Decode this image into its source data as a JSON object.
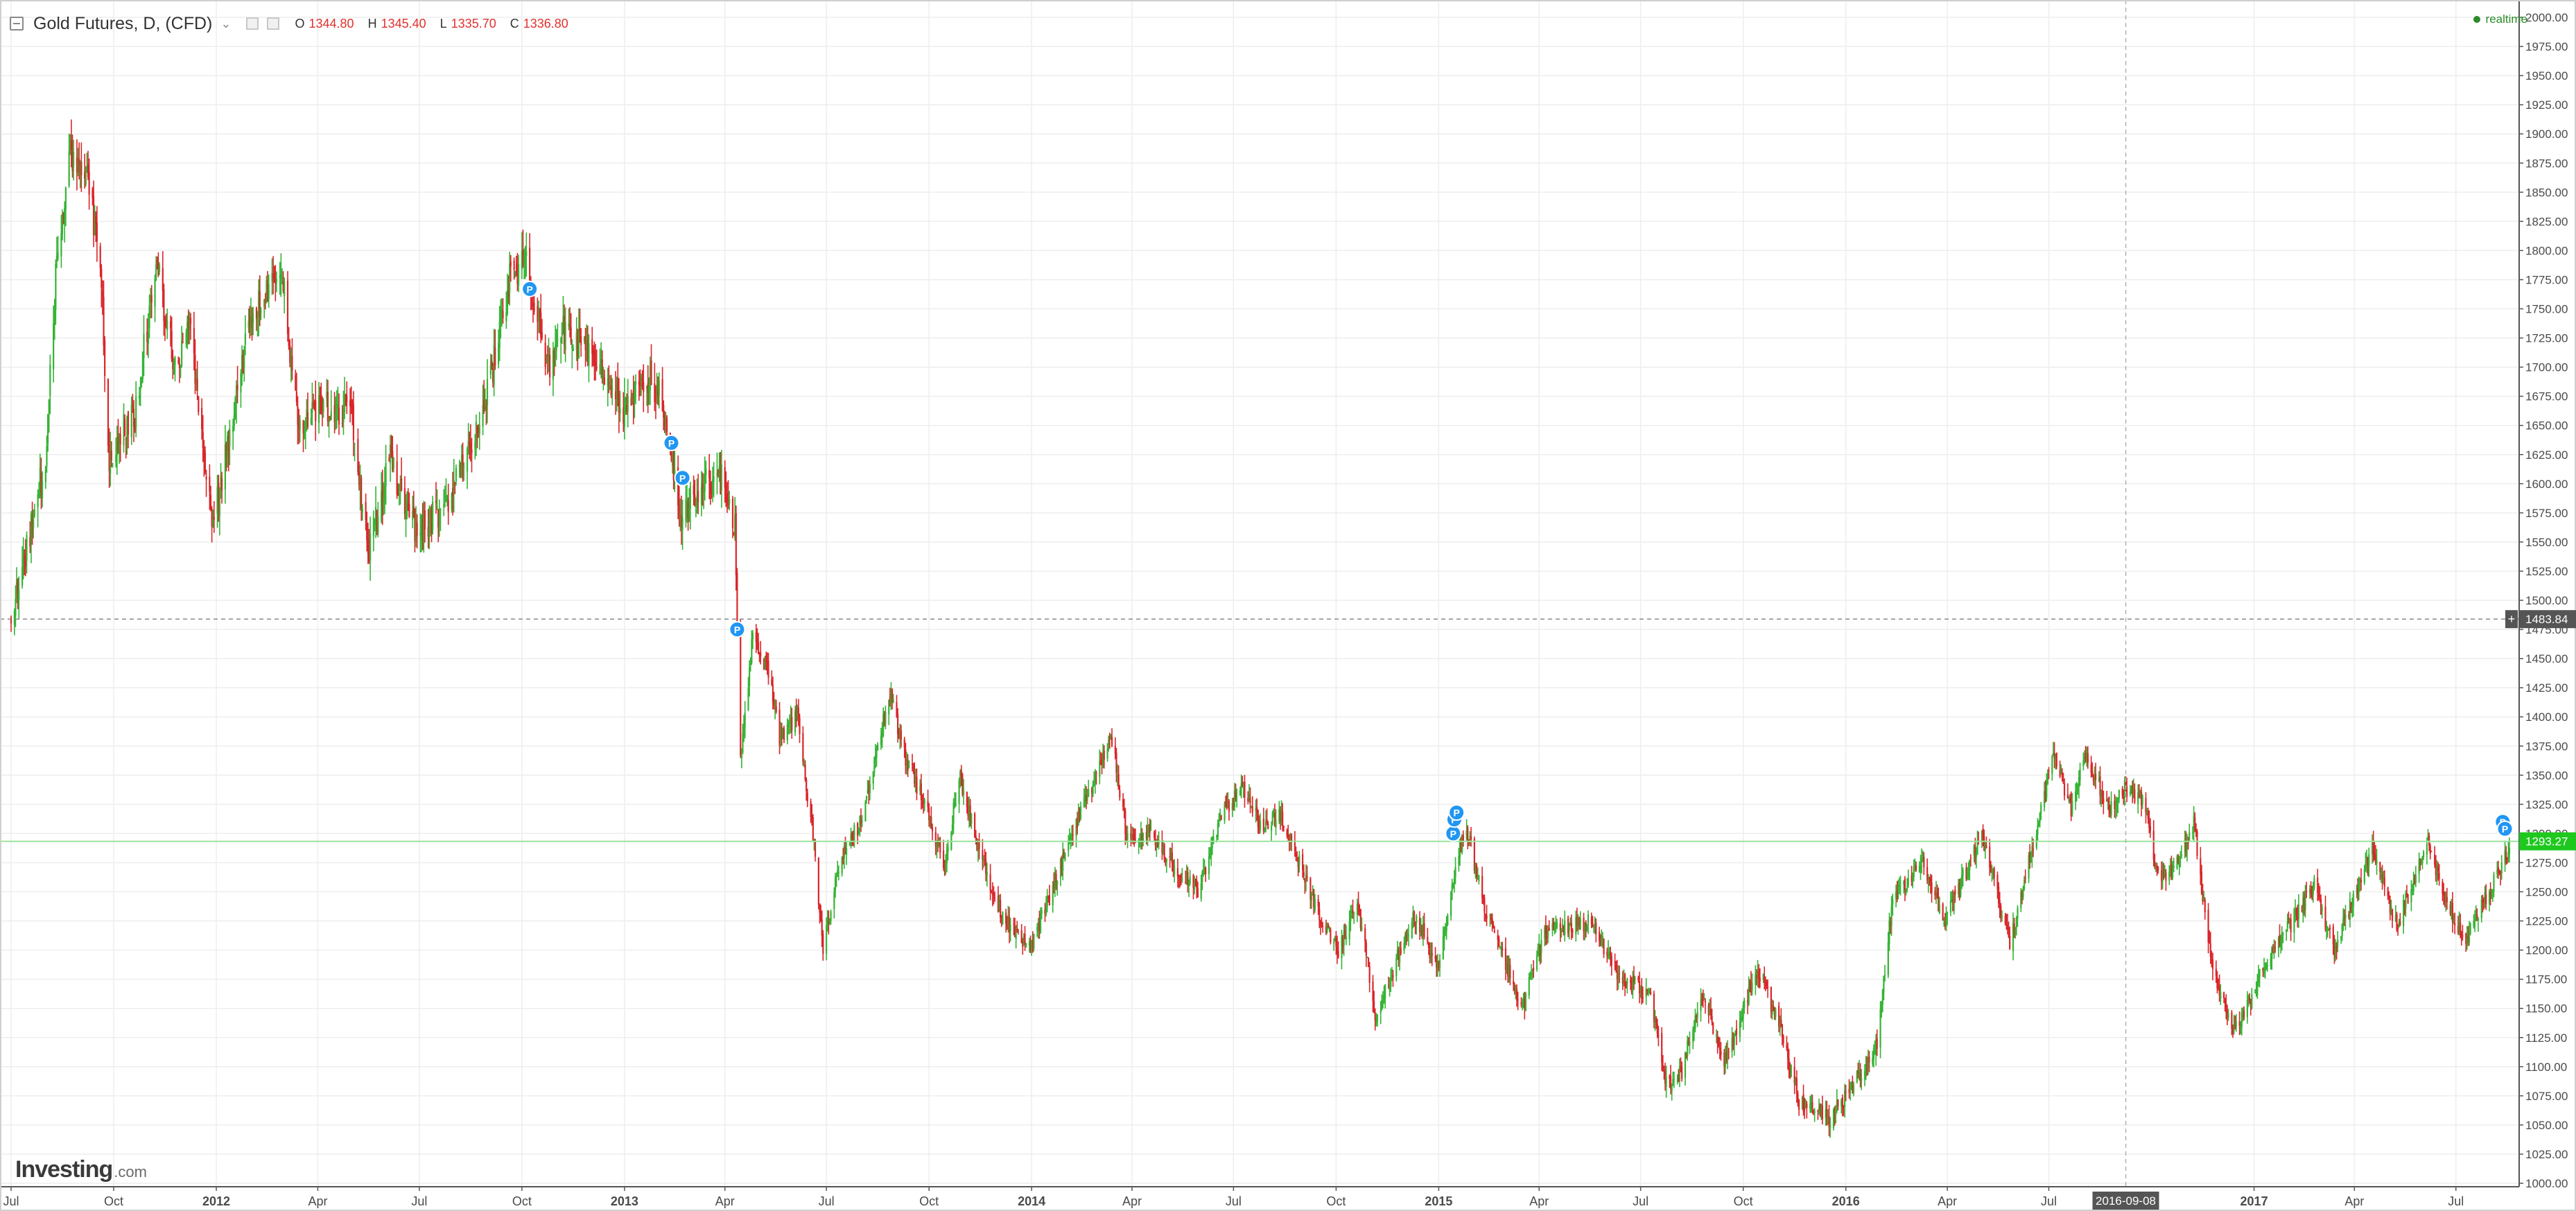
{
  "header": {
    "title": "Gold Futures, D, (CFD)",
    "ohlc": [
      {
        "label": "O",
        "value": "1344.80"
      },
      {
        "label": "H",
        "value": "1345.40"
      },
      {
        "label": "L",
        "value": "1335.70"
      },
      {
        "label": "C",
        "value": "1336.80"
      }
    ],
    "realtime_label": "realtime"
  },
  "brand": {
    "name": "Investing",
    "suffix": ".com"
  },
  "colors": {
    "up": "#35b335",
    "down": "#d9262a",
    "grid": "#eeeeee",
    "axis": "#555555",
    "price_tag_current": "#1ec81e",
    "price_tag_crosshair": "#555555",
    "marker": "#2196f3"
  },
  "chart_data": {
    "type": "candlestick",
    "interval": "D",
    "y_axis": {
      "min": 1000,
      "max": 2000,
      "step": 25,
      "tick_labels": [
        "1000.00",
        "1025.00",
        "1050.00",
        "1075.00",
        "1100.00",
        "1125.00",
        "1150.00",
        "1175.00",
        "1200.00",
        "1225.00",
        "1250.00",
        "1275.00",
        "1300.00",
        "1325.00",
        "1350.00",
        "1375.00",
        "1400.00",
        "1425.00",
        "1450.00",
        "1475.00",
        "1500.00",
        "1525.00",
        "1550.00",
        "1575.00",
        "1600.00",
        "1625.00",
        "1650.00",
        "1675.00",
        "1700.00",
        "1725.00",
        "1750.00",
        "1775.00",
        "1800.00",
        "1825.00",
        "1850.00",
        "1875.00",
        "1900.00",
        "1925.00",
        "1950.00",
        "1975.00",
        "2000.00"
      ]
    },
    "x_axis": {
      "start": "2011-07-01",
      "end": "2017-08-18",
      "ticks": [
        {
          "date": "2011-07-01",
          "label": "Jul",
          "bold": false
        },
        {
          "date": "2011-10-01",
          "label": "Oct",
          "bold": false
        },
        {
          "date": "2012-01-01",
          "label": "2012",
          "bold": true
        },
        {
          "date": "2012-04-01",
          "label": "Apr",
          "bold": false
        },
        {
          "date": "2012-07-01",
          "label": "Jul",
          "bold": false
        },
        {
          "date": "2012-10-01",
          "label": "Oct",
          "bold": false
        },
        {
          "date": "2013-01-01",
          "label": "2013",
          "bold": true
        },
        {
          "date": "2013-04-01",
          "label": "Apr",
          "bold": false
        },
        {
          "date": "2013-07-01",
          "label": "Jul",
          "bold": false
        },
        {
          "date": "2013-10-01",
          "label": "Oct",
          "bold": false
        },
        {
          "date": "2014-01-01",
          "label": "2014",
          "bold": true
        },
        {
          "date": "2014-04-01",
          "label": "Apr",
          "bold": false
        },
        {
          "date": "2014-07-01",
          "label": "Jul",
          "bold": false
        },
        {
          "date": "2014-10-01",
          "label": "Oct",
          "bold": false
        },
        {
          "date": "2015-01-01",
          "label": "2015",
          "bold": true
        },
        {
          "date": "2015-04-01",
          "label": "Apr",
          "bold": false
        },
        {
          "date": "2015-07-01",
          "label": "Jul",
          "bold": false
        },
        {
          "date": "2015-10-01",
          "label": "Oct",
          "bold": false
        },
        {
          "date": "2016-01-01",
          "label": "2016",
          "bold": true
        },
        {
          "date": "2016-04-01",
          "label": "Apr",
          "bold": false
        },
        {
          "date": "2016-07-01",
          "label": "Jul",
          "bold": false
        },
        {
          "date": "2017-01-01",
          "label": "2017",
          "bold": true
        },
        {
          "date": "2017-04-01",
          "label": "Apr",
          "bold": false
        },
        {
          "date": "2017-07-01",
          "label": "Jul",
          "bold": false
        }
      ]
    },
    "price_path": [
      [
        "2011-07-01",
        1485
      ],
      [
        "2011-07-18",
        1560
      ],
      [
        "2011-08-01",
        1625
      ],
      [
        "2011-08-10",
        1780
      ],
      [
        "2011-08-22",
        1885
      ],
      [
        "2011-09-06",
        1870
      ],
      [
        "2011-09-20",
        1780
      ],
      [
        "2011-09-26",
        1620
      ],
      [
        "2011-10-04",
        1640
      ],
      [
        "2011-10-20",
        1660
      ],
      [
        "2011-11-08",
        1790
      ],
      [
        "2011-11-25",
        1700
      ],
      [
        "2011-12-08",
        1740
      ],
      [
        "2011-12-29",
        1560
      ],
      [
        "2012-01-10",
        1630
      ],
      [
        "2012-01-31",
        1740
      ],
      [
        "2012-02-28",
        1785
      ],
      [
        "2012-03-15",
        1650
      ],
      [
        "2012-04-02",
        1670
      ],
      [
        "2012-05-01",
        1660
      ],
      [
        "2012-05-16",
        1540
      ],
      [
        "2012-06-05",
        1620
      ],
      [
        "2012-06-28",
        1560
      ],
      [
        "2012-07-24",
        1580
      ],
      [
        "2012-08-21",
        1640
      ],
      [
        "2012-09-05",
        1700
      ],
      [
        "2012-09-20",
        1775
      ],
      [
        "2012-10-04",
        1790
      ],
      [
        "2012-10-25",
        1700
      ],
      [
        "2012-11-09",
        1735
      ],
      [
        "2012-11-30",
        1710
      ],
      [
        "2012-12-14",
        1695
      ],
      [
        "2012-12-31",
        1665
      ],
      [
        "2013-01-22",
        1690
      ],
      [
        "2013-02-05",
        1670
      ],
      [
        "2013-02-15",
        1610
      ],
      [
        "2013-02-21",
        1575
      ],
      [
        "2013-03-15",
        1600
      ],
      [
        "2013-04-01",
        1605
      ],
      [
        "2013-04-10",
        1560
      ],
      [
        "2013-04-15",
        1360
      ],
      [
        "2013-04-26",
        1470
      ],
      [
        "2013-05-10",
        1440
      ],
      [
        "2013-05-20",
        1380
      ],
      [
        "2013-06-05",
        1400
      ],
      [
        "2013-06-20",
        1290
      ],
      [
        "2013-06-28",
        1200
      ],
      [
        "2013-07-15",
        1285
      ],
      [
        "2013-08-01",
        1310
      ],
      [
        "2013-08-27",
        1420
      ],
      [
        "2013-09-10",
        1365
      ],
      [
        "2013-09-25",
        1330
      ],
      [
        "2013-10-15",
        1270
      ],
      [
        "2013-10-28",
        1350
      ],
      [
        "2013-11-15",
        1285
      ],
      [
        "2013-12-05",
        1230
      ],
      [
        "2013-12-31",
        1200
      ],
      [
        "2014-01-24",
        1265
      ],
      [
        "2014-02-14",
        1320
      ],
      [
        "2014-03-14",
        1380
      ],
      [
        "2014-03-28",
        1295
      ],
      [
        "2014-04-15",
        1300
      ],
      [
        "2014-05-30",
        1250
      ],
      [
        "2014-06-20",
        1315
      ],
      [
        "2014-07-10",
        1340
      ],
      [
        "2014-07-25",
        1305
      ],
      [
        "2014-08-12",
        1315
      ],
      [
        "2014-09-10",
        1245
      ],
      [
        "2014-10-03",
        1195
      ],
      [
        "2014-10-20",
        1245
      ],
      [
        "2014-11-06",
        1140
      ],
      [
        "2014-11-25",
        1195
      ],
      [
        "2014-12-10",
        1230
      ],
      [
        "2014-12-31",
        1185
      ],
      [
        "2015-01-20",
        1290
      ],
      [
        "2015-01-27",
        1300
      ],
      [
        "2015-02-10",
        1240
      ],
      [
        "2015-03-17",
        1150
      ],
      [
        "2015-04-06",
        1215
      ],
      [
        "2015-05-18",
        1225
      ],
      [
        "2015-06-10",
        1180
      ],
      [
        "2015-07-10",
        1160
      ],
      [
        "2015-07-24",
        1085
      ],
      [
        "2015-08-07",
        1095
      ],
      [
        "2015-08-24",
        1165
      ],
      [
        "2015-09-15",
        1105
      ],
      [
        "2015-10-14",
        1185
      ],
      [
        "2015-11-02",
        1135
      ],
      [
        "2015-11-20",
        1070
      ],
      [
        "2015-12-17",
        1055
      ],
      [
        "2016-01-05",
        1080
      ],
      [
        "2016-01-29",
        1120
      ],
      [
        "2016-02-12",
        1245
      ],
      [
        "2016-03-10",
        1275
      ],
      [
        "2016-03-30",
        1225
      ],
      [
        "2016-05-02",
        1300
      ],
      [
        "2016-05-27",
        1205
      ],
      [
        "2016-06-24",
        1320
      ],
      [
        "2016-07-06",
        1370
      ],
      [
        "2016-07-21",
        1320
      ],
      [
        "2016-08-02",
        1365
      ],
      [
        "2016-08-25",
        1320
      ],
      [
        "2016-09-08",
        1340
      ],
      [
        "2016-09-26",
        1325
      ],
      [
        "2016-10-05",
        1265
      ],
      [
        "2016-10-19",
        1265
      ],
      [
        "2016-11-08",
        1310
      ],
      [
        "2016-11-24",
        1185
      ],
      [
        "2016-12-15",
        1130
      ],
      [
        "2017-01-10",
        1185
      ],
      [
        "2017-02-24",
        1255
      ],
      [
        "2017-03-14",
        1200
      ],
      [
        "2017-04-17",
        1290
      ],
      [
        "2017-05-09",
        1220
      ],
      [
        "2017-06-06",
        1295
      ],
      [
        "2017-06-20",
        1245
      ],
      [
        "2017-07-10",
        1210
      ],
      [
        "2017-08-08",
        1265
      ],
      [
        "2017-08-18",
        1290
      ]
    ],
    "markers": [
      {
        "date": "2012-10-08",
        "price": 1767,
        "label": "P"
      },
      {
        "date": "2013-02-12",
        "price": 1635,
        "label": "P"
      },
      {
        "date": "2013-02-22",
        "price": 1605,
        "label": "P"
      },
      {
        "date": "2013-04-12",
        "price": 1475,
        "label": "P"
      },
      {
        "date": "2015-01-14",
        "price": 1300,
        "label": "P"
      },
      {
        "date": "2015-01-15",
        "price": 1312,
        "label": "P"
      },
      {
        "date": "2015-01-17",
        "price": 1318,
        "label": "P"
      },
      {
        "date": "2017-08-12",
        "price": 1310,
        "label": "P"
      },
      {
        "date": "2017-08-14",
        "price": 1304,
        "label": "P"
      }
    ],
    "current_price": {
      "value": 1293.27,
      "label": "1293.27"
    },
    "crosshair": {
      "date": "2016-09-08",
      "date_label": "2016-09-08",
      "price": 1483.84,
      "price_label": "1483.84"
    },
    "grid": true
  }
}
